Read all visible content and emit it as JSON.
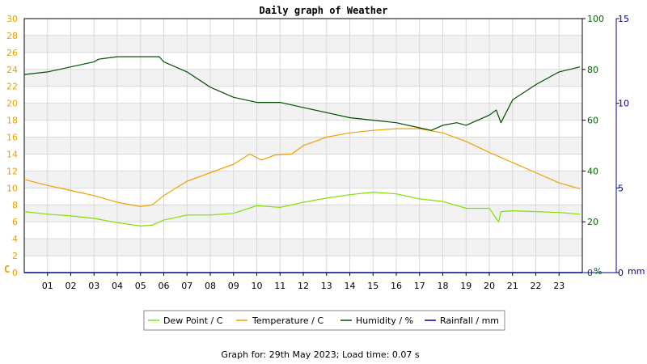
{
  "colors": {
    "dew_point": "#7fe000",
    "temperature": "#f0a000",
    "humidity": "#005000",
    "rainfall": "#000099",
    "left_axis": "#e8a000",
    "right_axis": "#006600",
    "rain_axis": "#000099",
    "band": "#f2f2f2",
    "grid": "#d8d8d8"
  },
  "footer": "Graph for: 29th May 2023; Load time: 0.07 s",
  "legend": [
    {
      "label": "Dew Point / C",
      "color": "#7fe000"
    },
    {
      "label": "Temperature / C",
      "color": "#f0a000"
    },
    {
      "label": "Humidity / %",
      "color": "#005000"
    },
    {
      "label": "Rainfall / mm",
      "color": "#000099"
    }
  ],
  "chart_data": {
    "type": "line",
    "title": "Daily graph of Weather",
    "x_ticks": [
      "01",
      "02",
      "03",
      "04",
      "05",
      "06",
      "07",
      "08",
      "09",
      "10",
      "11",
      "12",
      "13",
      "14",
      "15",
      "16",
      "17",
      "18",
      "19",
      "20",
      "21",
      "22",
      "23"
    ],
    "xlim": [
      0,
      24
    ],
    "axes": {
      "left": {
        "unit": "C",
        "ylim": [
          0,
          30
        ],
        "ticks": [
          "0",
          "2",
          "4",
          "6",
          "8",
          "10",
          "12",
          "14",
          "16",
          "18",
          "20",
          "22",
          "24",
          "26",
          "28",
          "30"
        ]
      },
      "right": {
        "unit": "%",
        "ylim": [
          0,
          100
        ],
        "ticks": [
          "0",
          "20",
          "40",
          "60",
          "80",
          "100"
        ]
      },
      "rain": {
        "unit": "mm",
        "ylim": [
          0,
          15
        ],
        "ticks": [
          "0",
          "5",
          "10",
          "15"
        ]
      }
    },
    "grid": true,
    "legend_position": "bottom",
    "series": [
      {
        "name": "Dew Point / C",
        "axis": "left",
        "x": [
          0,
          1,
          2,
          3,
          4,
          5,
          5.5,
          6,
          7,
          8,
          9,
          10,
          11,
          12,
          13,
          14,
          15,
          16,
          17,
          18,
          19,
          20,
          20.4,
          20.5,
          21,
          22,
          23,
          23.9
        ],
        "y": [
          7.2,
          6.9,
          6.7,
          6.4,
          5.9,
          5.5,
          5.6,
          6.2,
          6.8,
          6.8,
          7.0,
          7.9,
          7.7,
          8.3,
          8.8,
          9.2,
          9.5,
          9.3,
          8.7,
          8.4,
          7.6,
          7.6,
          6.0,
          7.2,
          7.3,
          7.2,
          7.1,
          6.9
        ]
      },
      {
        "name": "Temperature / C",
        "axis": "left",
        "x": [
          0,
          1,
          2,
          3,
          4,
          5,
          5.5,
          6,
          7,
          8,
          9,
          9.7,
          10.2,
          10.8,
          11.5,
          12,
          12.5,
          13,
          14,
          15,
          16,
          17,
          18,
          19,
          20,
          21,
          22,
          23,
          23.9
        ],
        "y": [
          11.0,
          10.3,
          9.7,
          9.1,
          8.3,
          7.8,
          8.0,
          9.1,
          10.8,
          11.8,
          12.8,
          14.0,
          13.3,
          13.9,
          14.0,
          15.0,
          15.5,
          16.0,
          16.5,
          16.8,
          17.0,
          17.0,
          16.5,
          15.5,
          14.2,
          13.0,
          11.8,
          10.6,
          9.9
        ]
      },
      {
        "name": "Humidity / %",
        "axis": "right",
        "x": [
          0,
          1,
          2,
          3,
          3.2,
          4,
          5,
          5.8,
          6,
          7,
          8,
          9,
          10,
          11,
          12,
          13,
          14,
          15,
          16,
          17,
          17.5,
          18,
          18.6,
          19,
          20,
          20.3,
          20.5,
          21,
          22,
          23,
          23.9
        ],
        "y": [
          78,
          79,
          81,
          83,
          84,
          85,
          85,
          85,
          83,
          79,
          73,
          69,
          67,
          67,
          65,
          63,
          61,
          60,
          59,
          57,
          56,
          58,
          59,
          58,
          62,
          64,
          59,
          68,
          74,
          79,
          81
        ]
      },
      {
        "name": "Rainfall / mm",
        "axis": "rain",
        "x": [
          0,
          24
        ],
        "y": [
          0,
          0
        ]
      }
    ]
  }
}
